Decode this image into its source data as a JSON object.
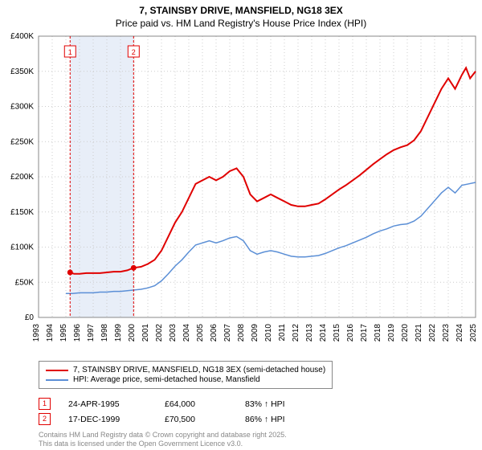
{
  "title": {
    "line1": "7, STAINSBY DRIVE, MANSFIELD, NG18 3EX",
    "line2": "Price paid vs. HM Land Registry's House Price Index (HPI)"
  },
  "chart": {
    "type": "line",
    "background_color": "#ffffff",
    "plot_border_color": "#888888",
    "grid_color": "#cccccc",
    "shaded_band_color": "#e8eef8",
    "fonts": {
      "axis_fontsize": 10,
      "title_fontsize": 12
    },
    "y_axis": {
      "min": 0,
      "max": 400000,
      "step": 50000,
      "labels": [
        "£0",
        "£50K",
        "£100K",
        "£150K",
        "£200K",
        "£250K",
        "£300K",
        "£350K",
        "£400K"
      ]
    },
    "x_axis": {
      "min": 1993,
      "max": 2025,
      "step": 1,
      "labels": [
        "1993",
        "1994",
        "1995",
        "1996",
        "1997",
        "1998",
        "1999",
        "2000",
        "2001",
        "2002",
        "2003",
        "2004",
        "2005",
        "2006",
        "2007",
        "2008",
        "2009",
        "2010",
        "2011",
        "2012",
        "2013",
        "2014",
        "2015",
        "2016",
        "2017",
        "2018",
        "2019",
        "2020",
        "2021",
        "2022",
        "2023",
        "2024",
        "2025"
      ]
    },
    "series": [
      {
        "name": "7, STAINSBY DRIVE, MANSFIELD, NG18 3EX (semi-detached house)",
        "color": "#e00000",
        "stroke_width": 2,
        "data": [
          [
            1995.31,
            64000
          ],
          [
            1995.6,
            62000
          ],
          [
            1996.0,
            62000
          ],
          [
            1996.5,
            63000
          ],
          [
            1997.0,
            63000
          ],
          [
            1997.5,
            63000
          ],
          [
            1998.0,
            64000
          ],
          [
            1998.5,
            65000
          ],
          [
            1999.0,
            65000
          ],
          [
            1999.5,
            67000
          ],
          [
            1999.96,
            70500
          ],
          [
            2000.5,
            72000
          ],
          [
            2001.0,
            76000
          ],
          [
            2001.5,
            82000
          ],
          [
            2002.0,
            95000
          ],
          [
            2002.5,
            115000
          ],
          [
            2003.0,
            135000
          ],
          [
            2003.5,
            150000
          ],
          [
            2004.0,
            170000
          ],
          [
            2004.5,
            190000
          ],
          [
            2005.0,
            195000
          ],
          [
            2005.5,
            200000
          ],
          [
            2006.0,
            195000
          ],
          [
            2006.5,
            200000
          ],
          [
            2007.0,
            208000
          ],
          [
            2007.5,
            212000
          ],
          [
            2008.0,
            200000
          ],
          [
            2008.5,
            175000
          ],
          [
            2009.0,
            165000
          ],
          [
            2009.5,
            170000
          ],
          [
            2010.0,
            175000
          ],
          [
            2010.5,
            170000
          ],
          [
            2011.0,
            165000
          ],
          [
            2011.5,
            160000
          ],
          [
            2012.0,
            158000
          ],
          [
            2012.5,
            158000
          ],
          [
            2013.0,
            160000
          ],
          [
            2013.5,
            162000
          ],
          [
            2014.0,
            168000
          ],
          [
            2014.5,
            175000
          ],
          [
            2015.0,
            182000
          ],
          [
            2015.5,
            188000
          ],
          [
            2016.0,
            195000
          ],
          [
            2016.5,
            202000
          ],
          [
            2017.0,
            210000
          ],
          [
            2017.5,
            218000
          ],
          [
            2018.0,
            225000
          ],
          [
            2018.5,
            232000
          ],
          [
            2019.0,
            238000
          ],
          [
            2019.5,
            242000
          ],
          [
            2020.0,
            245000
          ],
          [
            2020.5,
            252000
          ],
          [
            2021.0,
            265000
          ],
          [
            2021.5,
            285000
          ],
          [
            2022.0,
            305000
          ],
          [
            2022.5,
            325000
          ],
          [
            2023.0,
            340000
          ],
          [
            2023.5,
            325000
          ],
          [
            2024.0,
            345000
          ],
          [
            2024.3,
            355000
          ],
          [
            2024.6,
            340000
          ],
          [
            2025.0,
            350000
          ]
        ]
      },
      {
        "name": "HPI: Average price, semi-detached house, Mansfield",
        "color": "#5b8fd6",
        "stroke_width": 1.5,
        "data": [
          [
            1995.0,
            34000
          ],
          [
            1995.5,
            34000
          ],
          [
            1996.0,
            35000
          ],
          [
            1996.5,
            35000
          ],
          [
            1997.0,
            35000
          ],
          [
            1997.5,
            36000
          ],
          [
            1998.0,
            36000
          ],
          [
            1998.5,
            37000
          ],
          [
            1999.0,
            37000
          ],
          [
            1999.5,
            38000
          ],
          [
            2000.0,
            39000
          ],
          [
            2000.5,
            40000
          ],
          [
            2001.0,
            42000
          ],
          [
            2001.5,
            45000
          ],
          [
            2002.0,
            52000
          ],
          [
            2002.5,
            62000
          ],
          [
            2003.0,
            73000
          ],
          [
            2003.5,
            82000
          ],
          [
            2004.0,
            93000
          ],
          [
            2004.5,
            103000
          ],
          [
            2005.0,
            106000
          ],
          [
            2005.5,
            109000
          ],
          [
            2006.0,
            106000
          ],
          [
            2006.5,
            109000
          ],
          [
            2007.0,
            113000
          ],
          [
            2007.5,
            115000
          ],
          [
            2008.0,
            109000
          ],
          [
            2008.5,
            95000
          ],
          [
            2009.0,
            90000
          ],
          [
            2009.5,
            93000
          ],
          [
            2010.0,
            95000
          ],
          [
            2010.5,
            93000
          ],
          [
            2011.0,
            90000
          ],
          [
            2011.5,
            87000
          ],
          [
            2012.0,
            86000
          ],
          [
            2012.5,
            86000
          ],
          [
            2013.0,
            87000
          ],
          [
            2013.5,
            88000
          ],
          [
            2014.0,
            91000
          ],
          [
            2014.5,
            95000
          ],
          [
            2015.0,
            99000
          ],
          [
            2015.5,
            102000
          ],
          [
            2016.0,
            106000
          ],
          [
            2016.5,
            110000
          ],
          [
            2017.0,
            114000
          ],
          [
            2017.5,
            119000
          ],
          [
            2018.0,
            123000
          ],
          [
            2018.5,
            126000
          ],
          [
            2019.0,
            130000
          ],
          [
            2019.5,
            132000
          ],
          [
            2020.0,
            133000
          ],
          [
            2020.5,
            137000
          ],
          [
            2021.0,
            144000
          ],
          [
            2021.5,
            155000
          ],
          [
            2022.0,
            166000
          ],
          [
            2022.5,
            177000
          ],
          [
            2023.0,
            185000
          ],
          [
            2023.5,
            177000
          ],
          [
            2024.0,
            188000
          ],
          [
            2024.5,
            190000
          ],
          [
            2025.0,
            192000
          ]
        ]
      }
    ],
    "markers": [
      {
        "label": "1",
        "x": 1995.31,
        "y": 64000,
        "color": "#e00000"
      },
      {
        "label": "2",
        "x": 1999.96,
        "y": 70500,
        "color": "#e00000"
      }
    ],
    "shaded_band": {
      "x_start": 1995.31,
      "x_end": 1999.96
    }
  },
  "legend": {
    "items": [
      {
        "color": "#e00000",
        "text": "7, STAINSBY DRIVE, MANSFIELD, NG18 3EX (semi-detached house)"
      },
      {
        "color": "#5b8fd6",
        "text": "HPI: Average price, semi-detached house, Mansfield"
      }
    ]
  },
  "annotations": [
    {
      "badge": "1",
      "date": "24-APR-1995",
      "price": "£64,000",
      "pct": "83% ↑ HPI"
    },
    {
      "badge": "2",
      "date": "17-DEC-1999",
      "price": "£70,500",
      "pct": "86% ↑ HPI"
    }
  ],
  "footer": {
    "line1": "Contains HM Land Registry data © Crown copyright and database right 2025.",
    "line2": "This data is licensed under the Open Government Licence v3.0."
  }
}
